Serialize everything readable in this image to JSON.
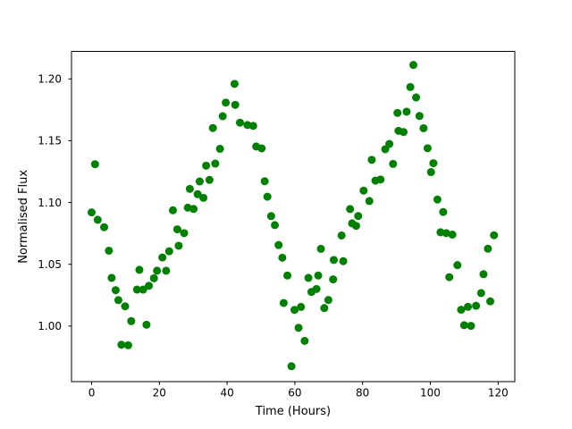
{
  "figure": {
    "background": "#ffffff"
  },
  "chart_data": {
    "type": "scatter",
    "title": "",
    "xlabel": "Time (Hours)",
    "ylabel": "Normalised Flux",
    "marker_color": "#008000",
    "marker_size_px": 9,
    "grid": false,
    "legend": null,
    "xlim": [
      -5.94,
      124.94
    ],
    "ylim": [
      0.9549,
      1.2222
    ],
    "xticks": [
      0,
      20,
      40,
      60,
      80,
      100,
      120
    ],
    "xtick_labels": [
      "0",
      "20",
      "40",
      "60",
      "80",
      "100",
      "120"
    ],
    "yticks": [
      1.0,
      1.05,
      1.1,
      1.15,
      1.2
    ],
    "ytick_labels": [
      "1.00",
      "1.05",
      "1.10",
      "1.15",
      "1.20"
    ],
    "points": [
      [
        0.0,
        1.092
      ],
      [
        1.0,
        1.131
      ],
      [
        1.8,
        1.086
      ],
      [
        3.7,
        1.08
      ],
      [
        5.1,
        1.061
      ],
      [
        5.9,
        1.039
      ],
      [
        7.1,
        1.029
      ],
      [
        7.9,
        1.021
      ],
      [
        8.8,
        0.9849
      ],
      [
        9.9,
        1.016
      ],
      [
        10.8,
        0.9845
      ],
      [
        11.7,
        1.004
      ],
      [
        13.4,
        1.0295
      ],
      [
        14.1,
        1.0455
      ],
      [
        15.2,
        1.0295
      ],
      [
        16.2,
        1.0011
      ],
      [
        16.9,
        1.0326
      ],
      [
        18.4,
        1.0387
      ],
      [
        19.3,
        1.0448
      ],
      [
        20.9,
        1.0555
      ],
      [
        22.0,
        1.0448
      ],
      [
        22.9,
        1.0605
      ],
      [
        24.0,
        1.0937
      ],
      [
        25.3,
        1.0783
      ],
      [
        25.7,
        1.065
      ],
      [
        27.3,
        1.0752
      ],
      [
        28.4,
        1.0958
      ],
      [
        29.0,
        1.111
      ],
      [
        30.1,
        1.0948
      ],
      [
        31.3,
        1.1067
      ],
      [
        31.9,
        1.117
      ],
      [
        33.0,
        1.1038
      ],
      [
        33.8,
        1.1298
      ],
      [
        34.8,
        1.1183
      ],
      [
        35.8,
        1.1603
      ],
      [
        36.5,
        1.1315
      ],
      [
        37.9,
        1.1434
      ],
      [
        38.7,
        1.1698
      ],
      [
        39.6,
        1.1808
      ],
      [
        42.2,
        1.196
      ],
      [
        42.4,
        1.179
      ],
      [
        43.8,
        1.1646
      ],
      [
        46.0,
        1.1627
      ],
      [
        47.7,
        1.162
      ],
      [
        48.6,
        1.1453
      ],
      [
        50.2,
        1.1438
      ],
      [
        51.1,
        1.1172
      ],
      [
        51.9,
        1.1047
      ],
      [
        53.0,
        1.089
      ],
      [
        54.1,
        1.0817
      ],
      [
        55.2,
        1.0656
      ],
      [
        56.3,
        1.0553
      ],
      [
        56.7,
        1.0187
      ],
      [
        57.8,
        1.0409
      ],
      [
        59.0,
        0.9675
      ],
      [
        59.9,
        1.0131
      ],
      [
        61.1,
        0.9986
      ],
      [
        61.8,
        1.0155
      ],
      [
        62.9,
        0.988
      ],
      [
        64.0,
        1.039
      ],
      [
        64.9,
        1.0276
      ],
      [
        66.4,
        1.03
      ],
      [
        66.9,
        1.0409
      ],
      [
        67.7,
        1.0625
      ],
      [
        68.7,
        1.0146
      ],
      [
        69.9,
        1.0211
      ],
      [
        71.3,
        1.0378
      ],
      [
        71.5,
        1.0535
      ],
      [
        73.8,
        1.0733
      ],
      [
        74.3,
        1.0525
      ],
      [
        76.3,
        1.0947
      ],
      [
        76.9,
        1.0831
      ],
      [
        78.1,
        1.0811
      ],
      [
        78.7,
        1.0891
      ],
      [
        80.3,
        1.1096
      ],
      [
        82.0,
        1.1012
      ],
      [
        82.7,
        1.1345
      ],
      [
        83.8,
        1.1177
      ],
      [
        85.3,
        1.1186
      ],
      [
        86.7,
        1.1431
      ],
      [
        87.9,
        1.1474
      ],
      [
        89.0,
        1.1312
      ],
      [
        90.3,
        1.1725
      ],
      [
        90.6,
        1.158
      ],
      [
        92.1,
        1.157
      ],
      [
        93.0,
        1.1735
      ],
      [
        94.1,
        1.1934
      ],
      [
        95.0,
        1.2113
      ],
      [
        95.8,
        1.185
      ],
      [
        96.8,
        1.17
      ],
      [
        98.0,
        1.1601
      ],
      [
        99.2,
        1.1439
      ],
      [
        100.2,
        1.1246
      ],
      [
        100.9,
        1.1318
      ],
      [
        102.1,
        1.1024
      ],
      [
        103.0,
        1.0759
      ],
      [
        103.8,
        1.0923
      ],
      [
        104.7,
        1.0752
      ],
      [
        105.6,
        1.0396
      ],
      [
        106.5,
        1.074
      ],
      [
        108.0,
        1.0493
      ],
      [
        109.1,
        1.0132
      ],
      [
        110.0,
        1.0007
      ],
      [
        111.1,
        1.0156
      ],
      [
        112.0,
        1.0002
      ],
      [
        113.5,
        1.0164
      ],
      [
        115.0,
        1.0267
      ],
      [
        115.7,
        1.042
      ],
      [
        117.0,
        1.0626
      ],
      [
        117.7,
        1.02
      ],
      [
        118.8,
        1.0735
      ]
    ]
  }
}
